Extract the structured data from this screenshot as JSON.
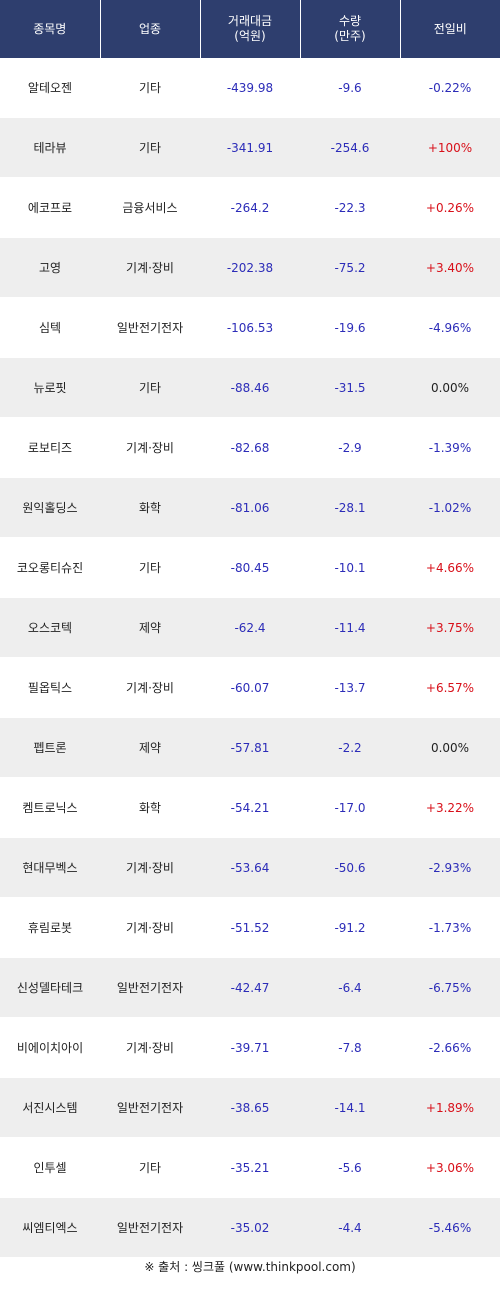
{
  "headers": {
    "name": "종목명",
    "sector": "업종",
    "value_line1": "거래대금",
    "value_line2": "(억원)",
    "volume_line1": "수량",
    "volume_line2": "(만주)",
    "change": "전일비"
  },
  "rows": [
    {
      "name": "알테오젠",
      "sector": "기타",
      "value": "-439.98",
      "volume": "-9.6",
      "change": "-0.22%",
      "dir": "down"
    },
    {
      "name": "테라뷰",
      "sector": "기타",
      "value": "-341.91",
      "volume": "-254.6",
      "change": "+100%",
      "dir": "up"
    },
    {
      "name": "에코프로",
      "sector": "금융서비스",
      "value": "-264.2",
      "volume": "-22.3",
      "change": "+0.26%",
      "dir": "up"
    },
    {
      "name": "고영",
      "sector": "기계·장비",
      "value": "-202.38",
      "volume": "-75.2",
      "change": "+3.40%",
      "dir": "up"
    },
    {
      "name": "심텍",
      "sector": "일반전기전자",
      "value": "-106.53",
      "volume": "-19.6",
      "change": "-4.96%",
      "dir": "down"
    },
    {
      "name": "뉴로핏",
      "sector": "기타",
      "value": "-88.46",
      "volume": "-31.5",
      "change": "0.00%",
      "dir": "flat"
    },
    {
      "name": "로보티즈",
      "sector": "기계·장비",
      "value": "-82.68",
      "volume": "-2.9",
      "change": "-1.39%",
      "dir": "down"
    },
    {
      "name": "원익홀딩스",
      "sector": "화학",
      "value": "-81.06",
      "volume": "-28.1",
      "change": "-1.02%",
      "dir": "down"
    },
    {
      "name": "코오롱티슈진",
      "sector": "기타",
      "value": "-80.45",
      "volume": "-10.1",
      "change": "+4.66%",
      "dir": "up"
    },
    {
      "name": "오스코텍",
      "sector": "제약",
      "value": "-62.4",
      "volume": "-11.4",
      "change": "+3.75%",
      "dir": "up"
    },
    {
      "name": "필옵틱스",
      "sector": "기계·장비",
      "value": "-60.07",
      "volume": "-13.7",
      "change": "+6.57%",
      "dir": "up"
    },
    {
      "name": "펩트론",
      "sector": "제약",
      "value": "-57.81",
      "volume": "-2.2",
      "change": "0.00%",
      "dir": "flat"
    },
    {
      "name": "켐트로닉스",
      "sector": "화학",
      "value": "-54.21",
      "volume": "-17.0",
      "change": "+3.22%",
      "dir": "up"
    },
    {
      "name": "현대무벡스",
      "sector": "기계·장비",
      "value": "-53.64",
      "volume": "-50.6",
      "change": "-2.93%",
      "dir": "down"
    },
    {
      "name": "휴림로봇",
      "sector": "기계·장비",
      "value": "-51.52",
      "volume": "-91.2",
      "change": "-1.73%",
      "dir": "down"
    },
    {
      "name": "신성델타테크",
      "sector": "일반전기전자",
      "value": "-42.47",
      "volume": "-6.4",
      "change": "-6.75%",
      "dir": "down"
    },
    {
      "name": "비에이치아이",
      "sector": "기계·장비",
      "value": "-39.71",
      "volume": "-7.8",
      "change": "-2.66%",
      "dir": "down"
    },
    {
      "name": "서진시스템",
      "sector": "일반전기전자",
      "value": "-38.65",
      "volume": "-14.1",
      "change": "+1.89%",
      "dir": "up"
    },
    {
      "name": "인투셀",
      "sector": "기타",
      "value": "-35.21",
      "volume": "-5.6",
      "change": "+3.06%",
      "dir": "up"
    },
    {
      "name": "씨엠티엑스",
      "sector": "일반전기전자",
      "value": "-35.02",
      "volume": "-4.4",
      "change": "-5.46%",
      "dir": "down"
    }
  ],
  "source": "※ 출처 : 씽크풀 (www.thinkpool.com)"
}
